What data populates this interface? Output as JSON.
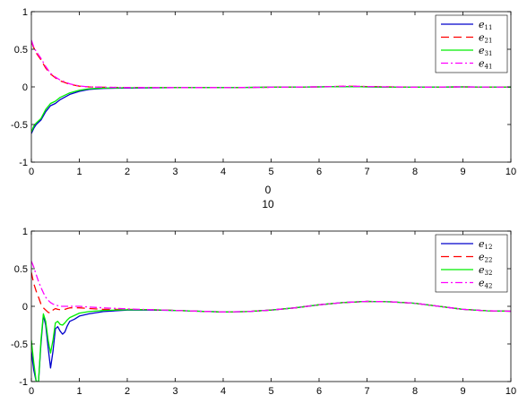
{
  "between_labels": [
    "0",
    "10"
  ],
  "chart_data": [
    {
      "type": "line",
      "xlim": [
        0,
        10
      ],
      "ylim": [
        -1,
        1
      ],
      "xticks": [
        0,
        1,
        2,
        3,
        4,
        5,
        6,
        7,
        8,
        9,
        10
      ],
      "yticks": [
        -1,
        -0.5,
        0,
        0.5,
        1
      ],
      "grid": false,
      "legend_position": "top-right",
      "x": [
        0,
        0.05,
        0.1,
        0.2,
        0.3,
        0.4,
        0.5,
        0.6,
        0.8,
        1.0,
        1.2,
        1.5,
        2,
        3,
        4,
        5,
        6,
        6.6,
        7,
        7.5,
        8,
        9,
        10
      ],
      "series": [
        {
          "name": "e",
          "sub": "11",
          "color": "#0000cc",
          "dash": "solid",
          "values": [
            -0.62,
            -0.55,
            -0.5,
            -0.44,
            -0.33,
            -0.25,
            -0.22,
            -0.17,
            -0.1,
            -0.06,
            -0.035,
            -0.02,
            -0.015,
            -0.01,
            -0.01,
            -0.005,
            0.0,
            0.005,
            0.0,
            -0.005,
            -0.005,
            0.0,
            -0.005
          ]
        },
        {
          "name": "e",
          "sub": "21",
          "color": "#ff0000",
          "dash": "dash",
          "values": [
            0.6,
            0.52,
            0.45,
            0.36,
            0.25,
            0.17,
            0.12,
            0.08,
            0.035,
            0.01,
            0.0,
            -0.005,
            -0.01,
            -0.01,
            -0.01,
            -0.005,
            0.0,
            0.01,
            0.005,
            0.0,
            -0.005,
            0.0,
            -0.005
          ]
        },
        {
          "name": "e",
          "sub": "31",
          "color": "#00ee00",
          "dash": "solid",
          "values": [
            -0.6,
            -0.52,
            -0.48,
            -0.42,
            -0.3,
            -0.22,
            -0.19,
            -0.14,
            -0.08,
            -0.045,
            -0.025,
            -0.015,
            -0.012,
            -0.01,
            -0.01,
            -0.005,
            0.0,
            0.005,
            0.0,
            -0.005,
            -0.005,
            0.0,
            -0.005
          ]
        },
        {
          "name": "e",
          "sub": "41",
          "color": "#ff00ff",
          "dash": "dashdot",
          "values": [
            0.62,
            0.53,
            0.47,
            0.38,
            0.27,
            0.18,
            0.13,
            0.09,
            0.04,
            0.012,
            0.0,
            -0.005,
            -0.01,
            -0.01,
            -0.01,
            -0.005,
            0.0,
            0.01,
            0.005,
            0.0,
            -0.005,
            0.0,
            -0.005
          ]
        }
      ]
    },
    {
      "type": "line",
      "xlim": [
        0,
        10
      ],
      "ylim": [
        -1,
        1
      ],
      "xticks": [
        0,
        1,
        2,
        3,
        4,
        5,
        6,
        7,
        8,
        9,
        10
      ],
      "yticks": [
        -1,
        -0.5,
        0,
        0.5,
        1
      ],
      "grid": false,
      "legend_position": "top-right",
      "x": [
        0,
        0.05,
        0.1,
        0.15,
        0.2,
        0.25,
        0.3,
        0.35,
        0.4,
        0.45,
        0.5,
        0.55,
        0.6,
        0.65,
        0.7,
        0.75,
        0.8,
        0.9,
        1.0,
        1.2,
        1.5,
        2,
        2.5,
        3,
        3.5,
        4,
        4.5,
        5,
        5.5,
        6,
        6.5,
        7,
        7.5,
        8,
        8.5,
        9,
        9.5,
        10
      ],
      "series": [
        {
          "name": "e",
          "sub": "12",
          "color": "#0000cc",
          "dash": "solid",
          "values": [
            -0.6,
            -0.85,
            -1.0,
            -1.0,
            -0.5,
            -0.12,
            -0.25,
            -0.55,
            -0.82,
            -0.6,
            -0.3,
            -0.27,
            -0.33,
            -0.37,
            -0.34,
            -0.26,
            -0.2,
            -0.17,
            -0.13,
            -0.1,
            -0.07,
            -0.05,
            -0.05,
            -0.055,
            -0.065,
            -0.075,
            -0.07,
            -0.05,
            -0.02,
            0.02,
            0.05,
            0.065,
            0.06,
            0.04,
            0.0,
            -0.04,
            -0.06,
            -0.065
          ]
        },
        {
          "name": "e",
          "sub": "22",
          "color": "#ff0000",
          "dash": "dash",
          "values": [
            0.45,
            0.3,
            0.2,
            0.12,
            0.03,
            -0.02,
            -0.05,
            -0.08,
            -0.09,
            -0.05,
            -0.03,
            -0.04,
            -0.045,
            -0.045,
            -0.04,
            -0.03,
            -0.02,
            -0.02,
            -0.02,
            -0.03,
            -0.04,
            -0.04,
            -0.045,
            -0.055,
            -0.065,
            -0.075,
            -0.07,
            -0.05,
            -0.02,
            0.02,
            0.05,
            0.065,
            0.06,
            0.04,
            0.0,
            -0.04,
            -0.06,
            -0.065
          ]
        },
        {
          "name": "e",
          "sub": "32",
          "color": "#00ee00",
          "dash": "solid",
          "values": [
            -0.45,
            -0.75,
            -1.0,
            -1.0,
            -0.45,
            -0.1,
            -0.2,
            -0.45,
            -0.62,
            -0.45,
            -0.22,
            -0.2,
            -0.24,
            -0.25,
            -0.22,
            -0.18,
            -0.15,
            -0.12,
            -0.09,
            -0.07,
            -0.055,
            -0.045,
            -0.045,
            -0.055,
            -0.065,
            -0.075,
            -0.07,
            -0.05,
            -0.02,
            0.02,
            0.05,
            0.065,
            0.06,
            0.04,
            0.0,
            -0.04,
            -0.06,
            -0.065
          ]
        },
        {
          "name": "e",
          "sub": "42",
          "color": "#ff00ff",
          "dash": "dashdot",
          "values": [
            0.6,
            0.52,
            0.42,
            0.33,
            0.25,
            0.18,
            0.12,
            0.08,
            0.05,
            0.03,
            0.02,
            0.01,
            0.0,
            0.0,
            0.0,
            0.0,
            0.0,
            0.0,
            0.0,
            -0.01,
            -0.02,
            -0.035,
            -0.045,
            -0.055,
            -0.065,
            -0.075,
            -0.07,
            -0.05,
            -0.02,
            0.02,
            0.05,
            0.065,
            0.06,
            0.04,
            0.0,
            -0.04,
            -0.06,
            -0.065
          ]
        }
      ]
    }
  ]
}
